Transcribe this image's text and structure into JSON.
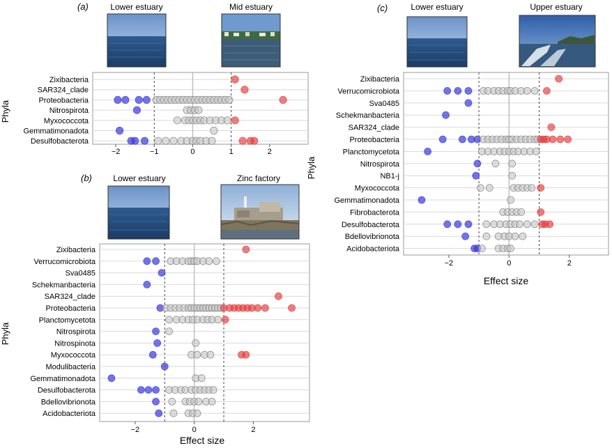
{
  "panels": [
    {
      "id": "a",
      "label": "(a)",
      "photo_left_caption": "Lower estuary",
      "photo_right_caption": "Mid estuary",
      "ylabel": "Phyla",
      "xlabel": "",
      "photo_left_scene": "open-water",
      "photo_right_scene": "shore-houses"
    },
    {
      "id": "b",
      "label": "(b)",
      "photo_left_caption": "Lower estuary",
      "photo_right_caption": "Zinc factory",
      "ylabel": "Phyla",
      "xlabel": "Effect size",
      "photo_left_scene": "open-water",
      "photo_right_scene": "factory"
    },
    {
      "id": "c",
      "label": "(c)",
      "photo_left_caption": "Lower estuary",
      "photo_right_caption": "Upper estuary",
      "ylabel": "Phyla",
      "xlabel": "Effect size",
      "photo_left_scene": "open-water",
      "photo_right_scene": "boat-wake"
    }
  ],
  "colors": {
    "depleted": "#3b3bdc",
    "enriched": "#e43c3c",
    "neutral_fill": "#c8c8c8",
    "neutral_stroke": "#7a7a7a",
    "grid": "#d9d9d9",
    "zero_line": "#bfbfbf",
    "threshold_line": "#444444",
    "frame": "#999999"
  },
  "chart_data": [
    {
      "type": "scatter",
      "panel": "a",
      "xlim": [
        -2.6,
        3.0
      ],
      "xticks": [
        -2,
        -1,
        0,
        1,
        2
      ],
      "xtick_labels": [
        "−2",
        "−1",
        "0",
        "1",
        "2"
      ],
      "thresholds": [
        -1,
        1
      ],
      "categories": [
        "Zixibacteria",
        "SAR324_clade",
        "Proteobacteria",
        "Nitrospirota",
        "Myxococcota",
        "Gemmatimonadota",
        "Desulfobacterota"
      ],
      "points": {
        "Zixibacteria": [
          1.1
        ],
        "SAR324_clade": [
          1.35
        ],
        "Proteobacteria": [
          -1.95,
          -1.75,
          -1.4,
          -1.2,
          -0.95,
          -0.85,
          -0.75,
          -0.65,
          -0.55,
          -0.45,
          -0.35,
          -0.25,
          -0.15,
          -0.05,
          0.05,
          0.15,
          0.25,
          0.35,
          0.45,
          0.55,
          0.65,
          0.75,
          0.85,
          0.95,
          2.35
        ],
        "Nitrospirota": [
          -1.45,
          -0.15,
          -0.05,
          0.05,
          0.15
        ],
        "Myxococcota": [
          -0.4,
          -0.2,
          -0.1,
          0.0,
          0.1,
          0.2,
          0.3,
          0.45,
          0.6,
          0.75,
          0.9,
          1.1
        ],
        "Gemmatimonadota": [
          -1.9,
          0.55
        ],
        "Desulfobacterota": [
          -1.6,
          -1.5,
          -1.25,
          -0.9,
          -0.7,
          -0.5,
          -0.3,
          -0.15,
          0.0,
          0.1,
          0.2,
          0.35,
          0.5,
          1.3,
          1.5,
          1.6
        ]
      }
    },
    {
      "type": "scatter",
      "panel": "b",
      "xlim": [
        -3.2,
        3.9
      ],
      "xticks": [
        -2,
        0,
        2
      ],
      "xtick_labels": [
        "−2",
        "0",
        "2"
      ],
      "thresholds": [
        -1,
        1
      ],
      "categories": [
        "Zixibacteria",
        "Verrucomicrobiota",
        "Sva0485",
        "Schekmanbacteria",
        "SAR324_clade",
        "Proteobacteria",
        "Planctomycetota",
        "Nitrospirota",
        "Nitrospinota",
        "Myxococcota",
        "Modulibacteria",
        "Gemmatimonadota",
        "Desulfobacterota",
        "Bdellovibrionota",
        "Acidobacteriota"
      ],
      "points": {
        "Zixibacteria": [
          1.75
        ],
        "Verrucomicrobiota": [
          -1.6,
          -1.3,
          -0.8,
          -0.6,
          -0.4,
          -0.2,
          -0.1,
          0.0,
          0.1,
          0.3,
          0.5,
          0.75
        ],
        "Sva0485": [
          -1.1
        ],
        "Schekmanbacteria": [
          -1.6
        ],
        "SAR324_clade": [
          2.85
        ],
        "Proteobacteria": [
          -1.15,
          -0.95,
          -0.8,
          -0.65,
          -0.5,
          -0.35,
          -0.2,
          -0.1,
          0.0,
          0.1,
          0.2,
          0.3,
          0.4,
          0.5,
          0.6,
          0.7,
          0.8,
          0.9,
          1.0,
          1.2,
          1.35,
          1.5,
          1.65,
          1.8,
          1.95,
          2.15,
          2.4,
          3.3
        ],
        "Planctomycetota": [
          -0.85,
          -0.6,
          -0.4,
          -0.2,
          -0.05,
          0.1,
          0.3,
          0.45,
          0.6,
          0.8,
          1.05
        ],
        "Nitrospirota": [
          -1.3,
          -0.85
        ],
        "Nitrospinota": [
          -1.25,
          0.05
        ],
        "Myxococcota": [
          -1.4,
          -0.1,
          0.1,
          0.35,
          0.55,
          1.6,
          1.75
        ],
        "Modulibacteria": [
          -1.0
        ],
        "Gemmatimonadota": [
          -2.8,
          0.05,
          0.25
        ],
        "Desulfobacterota": [
          -1.8,
          -1.55,
          -1.3,
          -0.85,
          -0.65,
          -0.45,
          -0.3,
          -0.1,
          0.05,
          0.2,
          0.35,
          0.5,
          0.65
        ],
        "Bdellovibrionota": [
          -1.3,
          -0.75,
          -0.3,
          -0.15,
          0.0,
          0.15,
          0.4,
          0.6
        ],
        "Acidobacteriota": [
          -1.2,
          -0.7,
          -0.2,
          -0.05,
          0.1
        ]
      }
    },
    {
      "type": "scatter",
      "panel": "c",
      "xlim": [
        -3.5,
        3.3
      ],
      "xticks": [
        -2,
        0,
        2
      ],
      "xtick_labels": [
        "−2",
        "0",
        "2"
      ],
      "thresholds": [
        -1,
        1
      ],
      "categories": [
        "Zixibacteria",
        "Verrucomicrobiota",
        "Sva0485",
        "Schekmanbacteria",
        "SAR324_clade",
        "Proteobacteria",
        "Planctomycetota",
        "Nitrospirota",
        "NB1-j",
        "Myxococcota",
        "Gemmatimonadota",
        "Fibrobacterota",
        "Desulfobacterota",
        "Bdellovibrionota",
        "Acidobacteriota"
      ],
      "points": {
        "Zixibacteria": [
          1.65
        ],
        "Verrucomicrobiota": [
          -2.05,
          -1.7,
          -1.35,
          -0.85,
          -0.7,
          -0.5,
          -0.35,
          -0.2,
          -0.05,
          0.05,
          0.2,
          0.4,
          0.6,
          0.85,
          1.25
        ],
        "Sva0485": [
          -1.35
        ],
        "Schekmanbacteria": [
          -2.1
        ],
        "SAR324_clade": [
          1.4
        ],
        "Proteobacteria": [
          -2.2,
          -1.55,
          -1.25,
          -1.05,
          -0.85,
          -0.7,
          -0.55,
          -0.4,
          -0.25,
          -0.1,
          0.0,
          0.1,
          0.25,
          0.4,
          0.55,
          0.7,
          0.85,
          0.95,
          1.05,
          1.15,
          1.25,
          1.45,
          1.7,
          1.95
        ],
        "Planctomycetota": [
          -2.7,
          -0.9,
          -0.7,
          -0.5,
          -0.3,
          -0.15,
          0.0,
          0.15,
          0.3,
          0.5,
          0.7,
          0.9
        ],
        "Nitrospirota": [
          -1.05,
          -0.45,
          0.1
        ],
        "NB1-j": [
          -1.1,
          0.1
        ],
        "Myxococcota": [
          -0.95,
          -0.65,
          0.15,
          0.3,
          0.45,
          0.6,
          0.75,
          1.05
        ],
        "Gemmatimonadota": [
          -2.9,
          0.05
        ],
        "Fibrobacterota": [
          -0.2,
          -0.05,
          0.1,
          0.25,
          0.4,
          1.05
        ],
        "Desulfobacterota": [
          -2.05,
          -1.7,
          -1.35,
          -0.75,
          -0.5,
          -0.3,
          -0.1,
          0.05,
          0.2,
          0.35,
          0.6,
          0.85,
          1.1,
          1.2,
          1.35
        ],
        "Bdellovibrionota": [
          -1.45,
          -0.75,
          -0.35,
          -0.15,
          0.0,
          0.2,
          0.45
        ],
        "Acidobacteriota": [
          -1.15,
          -1.05,
          -0.9,
          -0.35,
          -0.2,
          -0.05,
          0.05
        ]
      }
    }
  ]
}
